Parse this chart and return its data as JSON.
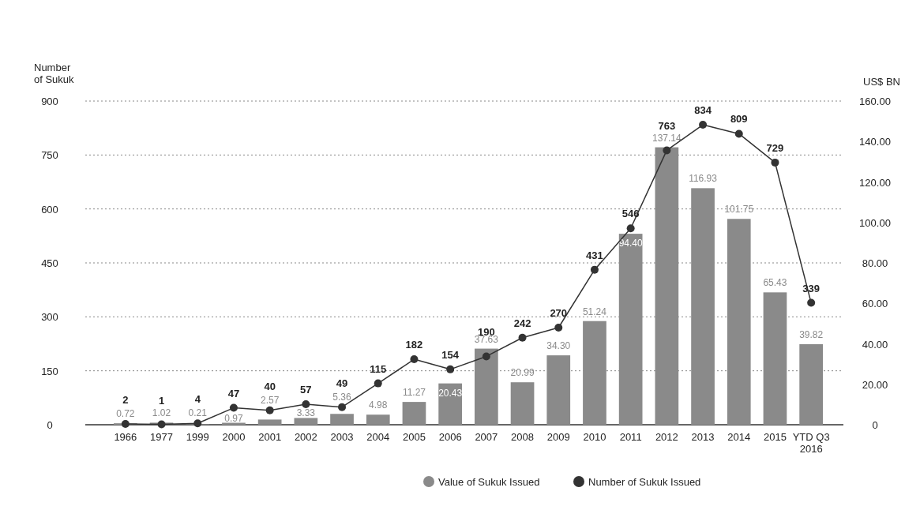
{
  "chart_data": {
    "type": "bar",
    "ylabel": "Number of Sukuk",
    "y2label": "US$ BN",
    "categories": [
      "1966",
      "1977",
      "1999",
      "2000",
      "2001",
      "2002",
      "2003",
      "2004",
      "2005",
      "2006",
      "2007",
      "2008",
      "2009",
      "2010",
      "2011",
      "2012",
      "2013",
      "2014",
      "2015",
      "YTD Q3 2016"
    ],
    "series": [
      {
        "name": "Value of Sukuk Issued",
        "axis": "y2",
        "color": "#8a8a8a",
        "values": [
          0.72,
          1.02,
          0.21,
          0.97,
          2.57,
          3.33,
          5.36,
          4.98,
          11.27,
          20.43,
          37.63,
          20.99,
          34.3,
          51.24,
          94.4,
          137.14,
          116.93,
          101.75,
          65.43,
          39.82
        ],
        "value_labels": [
          "0.72",
          "1.02",
          "0.21",
          "0.97",
          "2.57",
          "3.33",
          "5.36",
          "4.98",
          "11.27",
          "20.43",
          "37.63",
          "20.99",
          "34.30",
          "51.24",
          "94.40",
          "137.14",
          "116.93",
          "101.75",
          "65.43",
          "39.82"
        ]
      },
      {
        "name": "Number of Sukuk Issued",
        "type": "line",
        "axis": "y",
        "color": "#333333",
        "values": [
          2,
          1,
          4,
          47,
          40,
          57,
          49,
          115,
          182,
          154,
          190,
          242,
          270,
          431,
          546,
          763,
          834,
          809,
          729,
          339
        ],
        "value_labels": [
          "2",
          "1",
          "4",
          "47",
          "40",
          "57",
          "49",
          "115",
          "182",
          "154",
          "190",
          "242",
          "270",
          "431",
          "546",
          "763",
          "834",
          "809",
          "729",
          "339"
        ]
      }
    ],
    "ylim": [
      0,
      900
    ],
    "yticks": [
      0,
      150,
      300,
      450,
      600,
      750,
      900
    ],
    "y2lim": [
      0,
      160
    ],
    "y2ticks": [
      {
        "value": 0,
        "label": "0"
      },
      {
        "value": 20,
        "label": "20.00"
      },
      {
        "value": 40,
        "label": "40.00"
      },
      {
        "value": 60,
        "label": "60.00"
      },
      {
        "value": 80,
        "label": "80.00"
      },
      {
        "value": 100,
        "label": "100.00"
      },
      {
        "value": 120,
        "label": "120.00"
      },
      {
        "value": 140,
        "label": "140.00"
      },
      {
        "value": 160,
        "label": "160.00"
      }
    ],
    "grid": "y",
    "legend": "bottom",
    "marker": "circle"
  }
}
